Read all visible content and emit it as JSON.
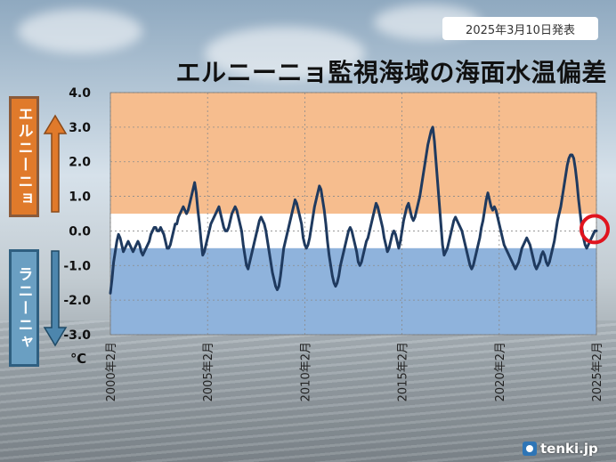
{
  "header": {
    "date": "2025年3月10日発表",
    "title": "エルニーニョ監視海域の海面水温偏差"
  },
  "side_labels": {
    "elnino": "エルニーニョ",
    "lanina": "ラニーニャ"
  },
  "brand": "tenki.jp",
  "colors": {
    "elnino_band": "#f6bd8e",
    "lanina_band": "#8fb3dc",
    "neutral_band": "#ffffff",
    "line": "#1f3a5f",
    "marker": "#e0141e"
  },
  "chart_data": {
    "type": "line",
    "title": "エルニーニョ監視海域の海面水温偏差",
    "ylabel": "℃",
    "ylim": [
      -3.0,
      4.0
    ],
    "yticks": [
      "4.0",
      "3.0",
      "2.0",
      "1.0",
      "0.0",
      "-1.0",
      "-2.0",
      "-3.0"
    ],
    "xticks": [
      "2000年2月",
      "2005年2月",
      "2010年2月",
      "2015年2月",
      "2020年2月",
      "2025年2月"
    ],
    "thresholds": {
      "elnino": 0.5,
      "lanina": -0.5
    },
    "grid": true,
    "series": [
      {
        "x_start": "2000-02",
        "step": "month",
        "values": [
          -1.8,
          -1.4,
          -0.9,
          -0.6,
          -0.3,
          -0.1,
          -0.2,
          -0.4,
          -0.6,
          -0.5,
          -0.4,
          -0.3,
          -0.4,
          -0.5,
          -0.6,
          -0.5,
          -0.4,
          -0.3,
          -0.4,
          -0.6,
          -0.7,
          -0.6,
          -0.5,
          -0.4,
          -0.3,
          -0.1,
          0.0,
          0.1,
          0.1,
          0.0,
          0.0,
          0.1,
          0.0,
          -0.1,
          -0.3,
          -0.5,
          -0.5,
          -0.4,
          -0.2,
          0.0,
          0.2,
          0.2,
          0.4,
          0.5,
          0.6,
          0.7,
          0.6,
          0.5,
          0.6,
          0.8,
          1.0,
          1.2,
          1.4,
          1.1,
          0.6,
          0.2,
          -0.3,
          -0.7,
          -0.6,
          -0.4,
          -0.2,
          0.0,
          0.2,
          0.3,
          0.4,
          0.5,
          0.6,
          0.7,
          0.5,
          0.3,
          0.1,
          0.0,
          0.0,
          0.1,
          0.3,
          0.5,
          0.6,
          0.7,
          0.6,
          0.4,
          0.2,
          0.0,
          -0.4,
          -0.7,
          -1.0,
          -1.1,
          -0.9,
          -0.7,
          -0.5,
          -0.3,
          -0.1,
          0.1,
          0.3,
          0.4,
          0.3,
          0.2,
          0.0,
          -0.3,
          -0.6,
          -0.9,
          -1.2,
          -1.4,
          -1.6,
          -1.7,
          -1.6,
          -1.3,
          -0.9,
          -0.5,
          -0.3,
          -0.1,
          0.1,
          0.3,
          0.5,
          0.7,
          0.9,
          0.8,
          0.6,
          0.4,
          0.2,
          -0.2,
          -0.4,
          -0.5,
          -0.4,
          -0.2,
          0.1,
          0.4,
          0.7,
          0.9,
          1.1,
          1.3,
          1.2,
          0.9,
          0.6,
          0.2,
          -0.3,
          -0.7,
          -1.0,
          -1.3,
          -1.5,
          -1.6,
          -1.5,
          -1.3,
          -1.0,
          -0.8,
          -0.6,
          -0.4,
          -0.2,
          0.0,
          0.1,
          0.0,
          -0.2,
          -0.4,
          -0.6,
          -0.9,
          -1.0,
          -0.9,
          -0.7,
          -0.5,
          -0.3,
          -0.2,
          0.0,
          0.2,
          0.4,
          0.6,
          0.8,
          0.7,
          0.5,
          0.3,
          0.1,
          -0.2,
          -0.4,
          -0.6,
          -0.5,
          -0.3,
          -0.1,
          0.0,
          -0.1,
          -0.3,
          -0.5,
          -0.3,
          0.0,
          0.3,
          0.5,
          0.7,
          0.8,
          0.6,
          0.4,
          0.3,
          0.4,
          0.6,
          0.8,
          1.0,
          1.3,
          1.6,
          1.9,
          2.2,
          2.5,
          2.7,
          2.9,
          3.0,
          2.6,
          2.0,
          1.4,
          0.8,
          0.2,
          -0.4,
          -0.7,
          -0.6,
          -0.5,
          -0.3,
          -0.1,
          0.1,
          0.3,
          0.4,
          0.3,
          0.2,
          0.1,
          0.0,
          -0.2,
          -0.4,
          -0.6,
          -0.8,
          -1.0,
          -1.1,
          -1.0,
          -0.8,
          -0.6,
          -0.4,
          -0.2,
          0.1,
          0.3,
          0.6,
          0.9,
          1.1,
          0.9,
          0.7,
          0.6,
          0.7,
          0.6,
          0.4,
          0.2,
          0.0,
          -0.2,
          -0.4,
          -0.5,
          -0.6,
          -0.7,
          -0.8,
          -0.9,
          -1.0,
          -1.1,
          -1.0,
          -0.9,
          -0.7,
          -0.5,
          -0.4,
          -0.3,
          -0.2,
          -0.3,
          -0.4,
          -0.6,
          -0.8,
          -1.0,
          -1.1,
          -1.0,
          -0.9,
          -0.7,
          -0.6,
          -0.7,
          -0.9,
          -1.0,
          -0.9,
          -0.7,
          -0.5,
          -0.3,
          0.0,
          0.3,
          0.5,
          0.7,
          1.0,
          1.3,
          1.6,
          1.9,
          2.1,
          2.2,
          2.2,
          2.1,
          1.8,
          1.4,
          0.9,
          0.5,
          0.1,
          -0.2,
          -0.4,
          -0.5,
          -0.4,
          -0.3,
          -0.2,
          -0.1,
          0.0,
          0.0
        ]
      }
    ]
  }
}
